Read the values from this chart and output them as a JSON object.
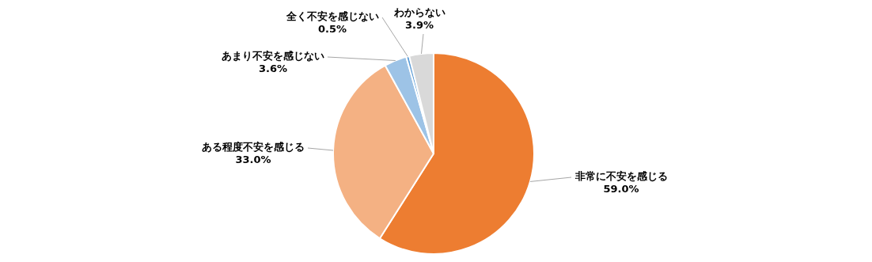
{
  "chart_data": {
    "type": "pie",
    "categories": [
      "非常に不安を感じる",
      "ある程度不安を感じる",
      "あまり不安を感じない",
      "全く不安を感じない",
      "わからない"
    ],
    "values": [
      59.0,
      33.0,
      3.6,
      0.5,
      3.9
    ],
    "colors": [
      "#ed7d31",
      "#f4b183",
      "#9dc3e6",
      "#5b9bd5",
      "#d9d9d9"
    ],
    "value_labels": [
      "59.0%",
      "33.0%",
      "3.6%",
      "0.5%",
      "3.9%"
    ],
    "legend": false
  }
}
